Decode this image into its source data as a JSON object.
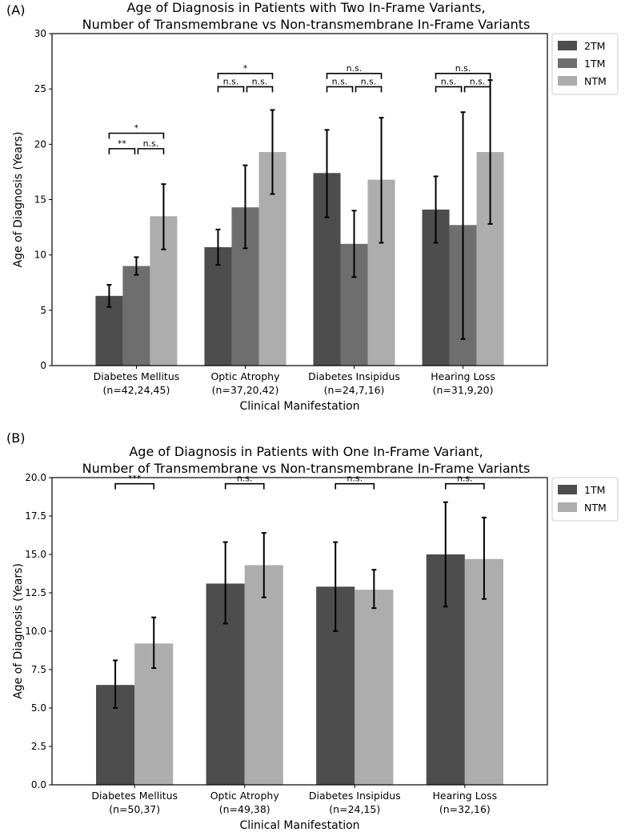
{
  "chart_data": [
    {
      "type": "bar",
      "panel_label": "(A)",
      "title": [
        "Age of Diagnosis in Patients with Two In-Frame Variants,",
        "Number of Transmembrane vs Non-transmembrane In-Frame Variants"
      ],
      "xlabel": "Clinical Manifestation",
      "ylabel": "Age of Diagnosis (Years)",
      "ylim": [
        0,
        30
      ],
      "yticks": [
        0,
        5,
        10,
        15,
        20,
        25,
        30
      ],
      "ytick_labels": [
        "0",
        "5",
        "10",
        "15",
        "20",
        "25",
        "30"
      ],
      "categories": [
        [
          "Diabetes Mellitus",
          "(n=42,24,45)"
        ],
        [
          "Optic Atrophy",
          "(n=37,20,42)"
        ],
        [
          "Diabetes Insipidus",
          "(n=24,7,16)"
        ],
        [
          "Hearing Loss",
          "(n=31,9,20)"
        ]
      ],
      "legend_position": "outside-right-top",
      "series": [
        {
          "name": "2TM",
          "color": "#4d4d4d",
          "values": [
            6.3,
            10.7,
            17.4,
            14.1
          ],
          "err_low": [
            5.3,
            9.1,
            13.4,
            11.1
          ],
          "err_high": [
            7.3,
            12.3,
            21.3,
            17.1
          ]
        },
        {
          "name": "1TM",
          "color": "#6e6e6e",
          "values": [
            9.0,
            14.3,
            11.0,
            12.7
          ],
          "err_low": [
            8.2,
            10.6,
            8.0,
            2.4
          ],
          "err_high": [
            9.8,
            18.1,
            14.0,
            22.9
          ]
        },
        {
          "name": "NTM",
          "color": "#adadad",
          "values": [
            13.5,
            19.3,
            16.8,
            19.3
          ],
          "err_low": [
            10.5,
            15.5,
            11.1,
            12.8
          ],
          "err_high": [
            16.4,
            23.1,
            22.4,
            25.8
          ]
        }
      ],
      "significance": [
        {
          "group": 0,
          "from": 0,
          "to": 1,
          "level": 19.6,
          "label": "**"
        },
        {
          "group": 0,
          "from": 1,
          "to": 2,
          "level": 19.6,
          "label": "n.s."
        },
        {
          "group": 0,
          "from": 0,
          "to": 2,
          "level": 21.0,
          "label": "*"
        },
        {
          "group": 1,
          "from": 0,
          "to": 1,
          "level": 25.2,
          "label": "n.s."
        },
        {
          "group": 1,
          "from": 1,
          "to": 2,
          "level": 25.2,
          "label": "n.s."
        },
        {
          "group": 1,
          "from": 0,
          "to": 2,
          "level": 26.4,
          "label": "*"
        },
        {
          "group": 2,
          "from": 0,
          "to": 1,
          "level": 25.2,
          "label": "n.s."
        },
        {
          "group": 2,
          "from": 1,
          "to": 2,
          "level": 25.2,
          "label": "n.s."
        },
        {
          "group": 2,
          "from": 0,
          "to": 2,
          "level": 26.4,
          "label": "n.s."
        },
        {
          "group": 3,
          "from": 0,
          "to": 1,
          "level": 25.2,
          "label": "n.s."
        },
        {
          "group": 3,
          "from": 1,
          "to": 2,
          "level": 25.2,
          "label": "n.s."
        },
        {
          "group": 3,
          "from": 0,
          "to": 2,
          "level": 26.4,
          "label": "n.s."
        }
      ]
    },
    {
      "type": "bar",
      "panel_label": "(B)",
      "title": [
        "Age of Diagnosis in Patients with One In-Frame Variant,",
        "Number of Transmembrane vs Non-transmembrane In-Frame Variants"
      ],
      "xlabel": "Clinical Manifestation",
      "ylabel": "Age of Diagnosis (Years)",
      "ylim": [
        0,
        20
      ],
      "yticks": [
        0,
        2.5,
        5,
        7.5,
        10,
        12.5,
        15,
        17.5,
        20
      ],
      "ytick_labels": [
        "0.0",
        "2.5",
        "5.0",
        "7.5",
        "10.0",
        "12.5",
        "15.0",
        "17.5",
        "20.0"
      ],
      "categories": [
        [
          "Diabetes Mellitus",
          "(n=50,37)"
        ],
        [
          "Optic Atrophy",
          "(n=49,38)"
        ],
        [
          "Diabetes Insipidus",
          "(n=24,15)"
        ],
        [
          "Hearing Loss",
          "(n=32,16)"
        ]
      ],
      "legend_position": "outside-right-top",
      "series": [
        {
          "name": "1TM",
          "color": "#4d4d4d",
          "values": [
            6.5,
            13.1,
            12.9,
            15.0
          ],
          "err_low": [
            5.0,
            10.5,
            10.0,
            11.6
          ],
          "err_high": [
            8.1,
            15.8,
            15.8,
            18.4
          ]
        },
        {
          "name": "NTM",
          "color": "#adadad",
          "values": [
            9.2,
            14.3,
            12.7,
            14.7
          ],
          "err_low": [
            7.6,
            12.2,
            11.5,
            12.1
          ],
          "err_high": [
            10.9,
            16.4,
            14.0,
            17.4
          ]
        }
      ],
      "significance": [
        {
          "group": 0,
          "from": 0,
          "to": 1,
          "level": 19.6,
          "label": "***"
        },
        {
          "group": 1,
          "from": 0,
          "to": 1,
          "level": 19.6,
          "label": "n.s."
        },
        {
          "group": 2,
          "from": 0,
          "to": 1,
          "level": 19.6,
          "label": "n.s."
        },
        {
          "group": 3,
          "from": 0,
          "to": 1,
          "level": 19.6,
          "label": "n.s."
        }
      ]
    }
  ]
}
